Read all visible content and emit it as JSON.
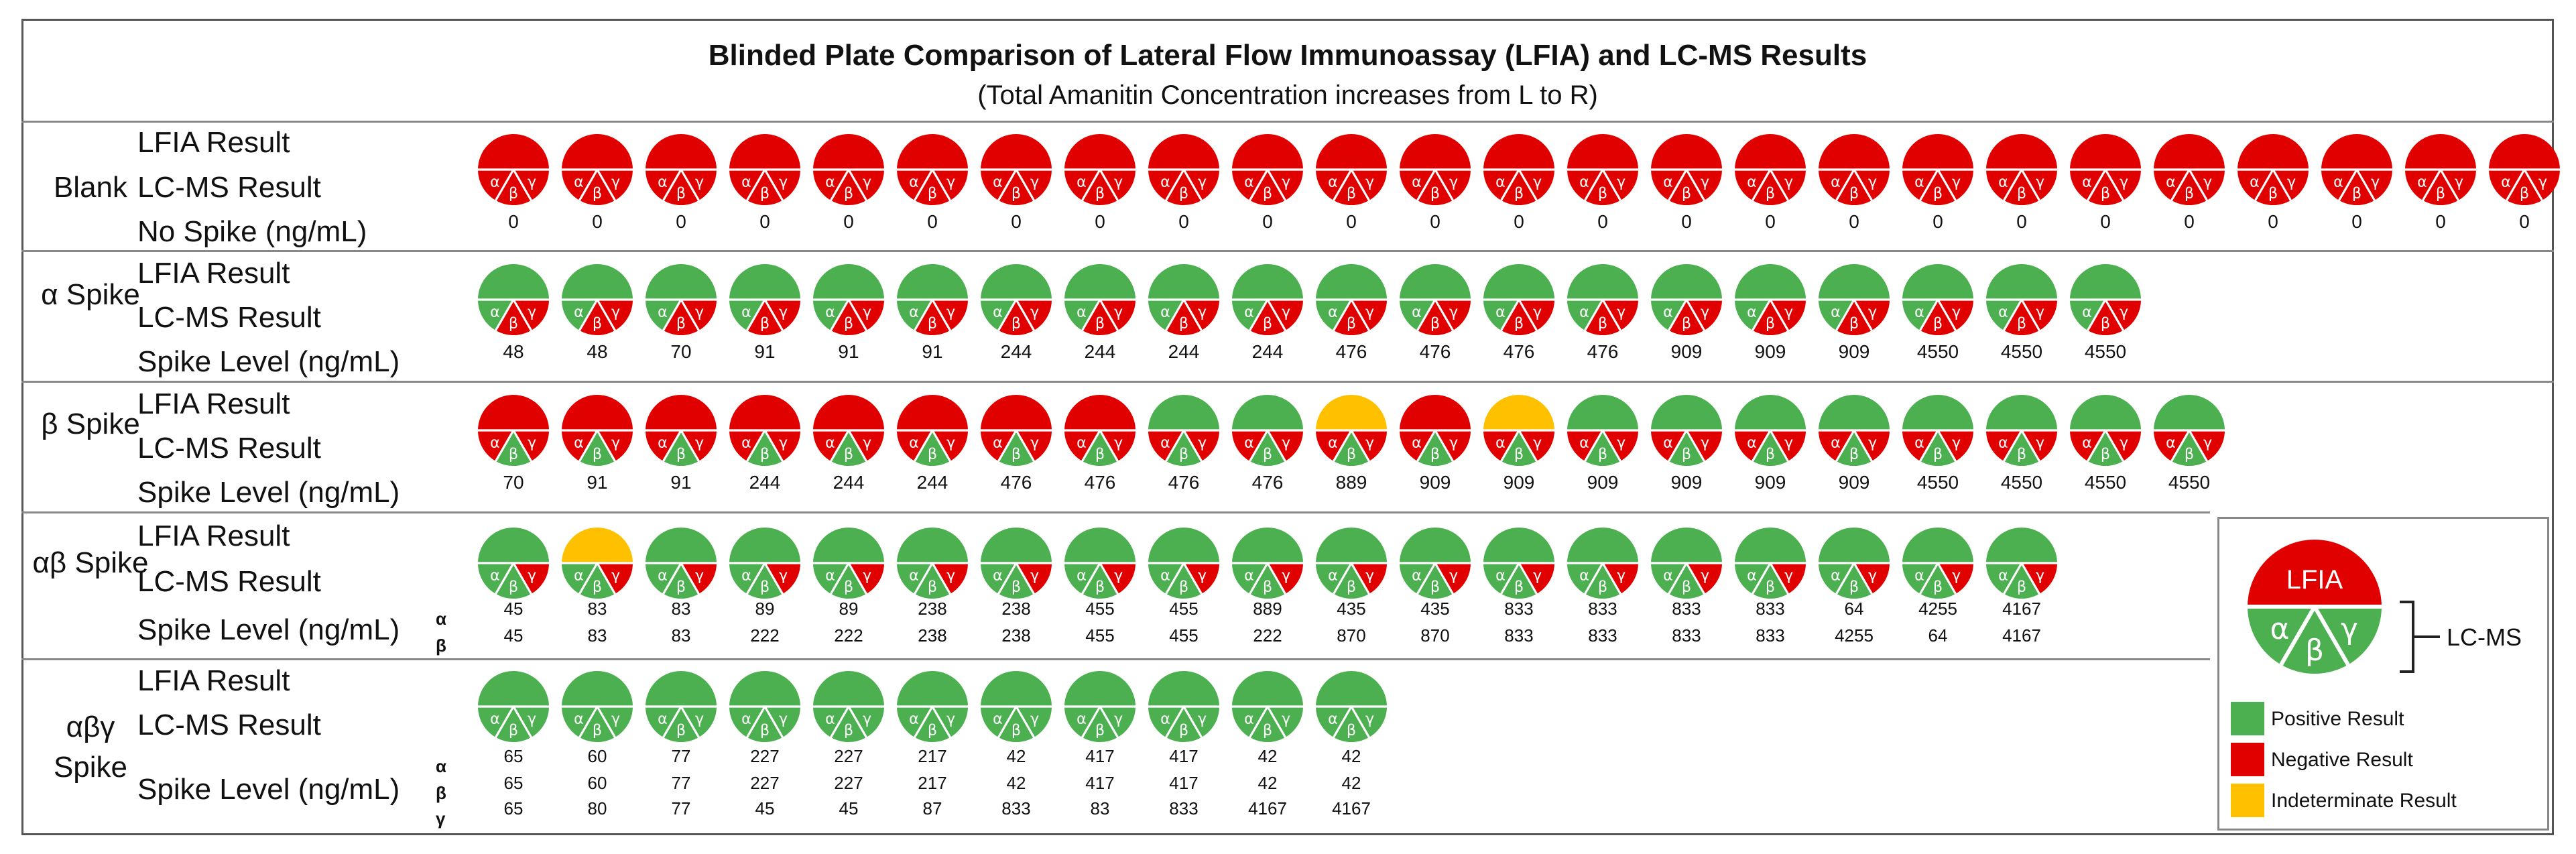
{
  "title": "Blinded Plate Comparison of Lateral Flow Immunoassay (LFIA) and LC-MS Results",
  "subtitle": "(Total Amanitin Concentration increases from L to R)",
  "row_labels": {
    "lfia": "LFIA Result",
    "lcms": "LC-MS Result",
    "no_spike": "No Spike (ng/mL)",
    "spike_level": "Spike Level (ng/mL)"
  },
  "greek": {
    "alpha": "α",
    "beta": "β",
    "gamma": "γ"
  },
  "colors": {
    "positive": "#4caf50",
    "negative": "#e00000",
    "indeterminate": "#ffc000"
  },
  "legend": {
    "lfia": "LFIA",
    "lcms": "LC-MS",
    "positive": "Positive Result",
    "negative": "Negative Result",
    "indeterminate": "Indeterminate Result"
  },
  "sections": [
    {
      "name": "Blank",
      "lfia": [
        "N",
        "N",
        "N",
        "N",
        "N",
        "N",
        "N",
        "N",
        "N",
        "N",
        "N",
        "N",
        "N",
        "N",
        "N",
        "N",
        "N",
        "N",
        "N",
        "N",
        "N",
        "N",
        "N",
        "N",
        "N"
      ],
      "lcms": [
        "NNN",
        "NNN",
        "NNN",
        "NNN",
        "NNN",
        "NNN",
        "NNN",
        "NNN",
        "NNN",
        "NNN",
        "NNN",
        "NNN",
        "NNN",
        "NNN",
        "NNN",
        "NNN",
        "NNN",
        "NNN",
        "NNN",
        "NNN",
        "NNN",
        "NNN",
        "NNN",
        "NNN",
        "NNN"
      ],
      "levels": [
        [
          "0",
          "0",
          "0",
          "0",
          "0",
          "0",
          "0",
          "0",
          "0",
          "0",
          "0",
          "0",
          "0",
          "0",
          "0",
          "0",
          "0",
          "0",
          "0",
          "0",
          "0",
          "0",
          "0",
          "0",
          "0"
        ]
      ]
    },
    {
      "name": "α Spike",
      "lfia": [
        "P",
        "P",
        "P",
        "P",
        "P",
        "P",
        "P",
        "P",
        "P",
        "P",
        "P",
        "P",
        "P",
        "P",
        "P",
        "P",
        "P",
        "P",
        "P",
        "P"
      ],
      "lcms": [
        "PNN",
        "PNN",
        "PNN",
        "PNN",
        "PNN",
        "PNN",
        "PNN",
        "PNN",
        "PNN",
        "PNN",
        "PNN",
        "PNN",
        "PNN",
        "PNN",
        "PNN",
        "PNN",
        "PNN",
        "PNN",
        "PNN",
        "PNN"
      ],
      "levels": [
        [
          "48",
          "48",
          "70",
          "91",
          "91",
          "91",
          "244",
          "244",
          "244",
          "244",
          "476",
          "476",
          "476",
          "476",
          "909",
          "909",
          "909",
          "4550",
          "4550",
          "4550"
        ]
      ]
    },
    {
      "name": "β Spike",
      "lfia": [
        "N",
        "N",
        "N",
        "N",
        "N",
        "N",
        "N",
        "N",
        "P",
        "P",
        "I",
        "N",
        "I",
        "P",
        "P",
        "P",
        "P",
        "P",
        "P",
        "P",
        "P"
      ],
      "lcms": [
        "NPN",
        "NPN",
        "NPN",
        "NPN",
        "NPN",
        "NPN",
        "NPN",
        "NPN",
        "NPN",
        "NPN",
        "NPN",
        "NPN",
        "NPN",
        "NPN",
        "NPN",
        "NPN",
        "NPN",
        "NPN",
        "NPN",
        "NPN",
        "NPN"
      ],
      "levels": [
        [
          "70",
          "91",
          "91",
          "244",
          "244",
          "244",
          "476",
          "476",
          "476",
          "476",
          "889",
          "909",
          "909",
          "909",
          "909",
          "909",
          "909",
          "4550",
          "4550",
          "4550",
          "4550"
        ]
      ]
    },
    {
      "name": "αβ Spike",
      "lfia": [
        "P",
        "I",
        "P",
        "P",
        "P",
        "P",
        "P",
        "P",
        "P",
        "P",
        "P",
        "P",
        "P",
        "P",
        "P",
        "P",
        "P",
        "P",
        "P"
      ],
      "lcms": [
        "PPN",
        "PPN",
        "PPN",
        "PPN",
        "PPN",
        "PPN",
        "PPN",
        "PPN",
        "PPN",
        "PPN",
        "PPN",
        "PPN",
        "PPN",
        "PPN",
        "PPN",
        "PPN",
        "PPN",
        "PPN",
        "PPN"
      ],
      "levels": [
        [
          "45",
          "83",
          "83",
          "89",
          "89",
          "238",
          "238",
          "455",
          "455",
          "889",
          "435",
          "435",
          "833",
          "833",
          "833",
          "833",
          "64",
          "4255",
          "4167"
        ],
        [
          "45",
          "83",
          "83",
          "222",
          "222",
          "238",
          "238",
          "455",
          "455",
          "222",
          "870",
          "870",
          "833",
          "833",
          "833",
          "833",
          "4255",
          "64",
          "4167"
        ]
      ]
    },
    {
      "name": "αβγ Spike",
      "lfia": [
        "P",
        "P",
        "P",
        "P",
        "P",
        "P",
        "P",
        "P",
        "P",
        "P",
        "P"
      ],
      "lcms": [
        "PPP",
        "PPP",
        "PPP",
        "PPP",
        "PPP",
        "PPP",
        "PPP",
        "PPP",
        "PPP",
        "PPP",
        "PPP"
      ],
      "levels": [
        [
          "65",
          "60",
          "77",
          "227",
          "227",
          "217",
          "42",
          "417",
          "417",
          "42",
          "42"
        ],
        [
          "65",
          "60",
          "77",
          "227",
          "227",
          "217",
          "42",
          "417",
          "417",
          "42",
          "42"
        ],
        [
          "65",
          "80",
          "77",
          "45",
          "45",
          "87",
          "833",
          "83",
          "833",
          "4167",
          "4167"
        ]
      ]
    }
  ]
}
